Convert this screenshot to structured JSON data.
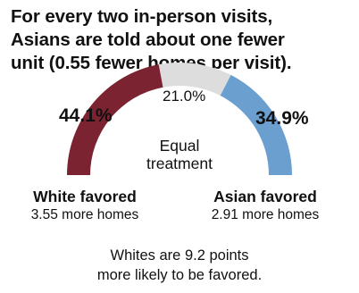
{
  "title_lines": [
    "For every two in-person visits,",
    "Asians are told about one fewer",
    "unit (0.55 fewer homes per visit)."
  ],
  "chart_data": {
    "type": "pie",
    "shape": "semicircle-gauge",
    "categories": [
      "White favored",
      "Equal treatment",
      "Asian favored"
    ],
    "values": [
      44.1,
      21.0,
      34.9
    ],
    "value_labels": [
      "44.1%",
      "21.0%",
      "34.9%"
    ],
    "colors": [
      "#7b2330",
      "#dddddd",
      "#6a9fd0"
    ],
    "center_label_lines": [
      "Equal",
      "treatment"
    ],
    "left_label": "White favored",
    "left_sublabel": "3.55 more homes",
    "right_label": "Asian favored",
    "right_sublabel": "2.91 more homes"
  },
  "footnote_lines": [
    "Whites are 9.2 points",
    "more likely to be favored."
  ]
}
